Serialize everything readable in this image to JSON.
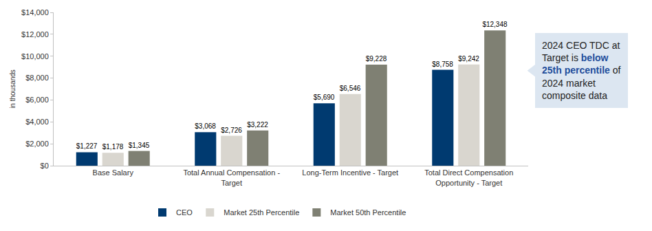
{
  "chart_data": {
    "type": "bar",
    "y_label": "in thousands",
    "categories": [
      "Base Salary",
      "Total Annual Compensation - Target",
      "Long-Term Incentive - Target",
      "Total Direct Compensation Opportunity - Target"
    ],
    "series": [
      {
        "name": "CEO",
        "color": "#003a70",
        "values": [
          1227,
          3068,
          5690,
          8758
        ],
        "value_labels": [
          "$1,227",
          "$3,068",
          "$5,690",
          "$8,758"
        ]
      },
      {
        "name": "Market 25th Percentile",
        "color": "#d9d6cf",
        "values": [
          1178,
          2726,
          6546,
          9242
        ],
        "value_labels": [
          "$1,178",
          "$2,726",
          "$6,546",
          "$9,242"
        ]
      },
      {
        "name": "Market 50th Percentile",
        "color": "#7f8073",
        "values": [
          1345,
          3222,
          9228,
          12348
        ],
        "value_labels": [
          "$1,345",
          "$3,222",
          "$9,228",
          "$12,348"
        ]
      }
    ],
    "ylim": [
      0,
      14000
    ],
    "yticks": [
      {
        "value": 0,
        "label": "$0"
      },
      {
        "value": 2000,
        "label": "$2,000"
      },
      {
        "value": 4000,
        "label": "$4,000"
      },
      {
        "value": 6000,
        "label": "$6,000"
      },
      {
        "value": 8000,
        "label": "$8,000"
      },
      {
        "value": 10000,
        "label": "$10,000"
      },
      {
        "value": 12000,
        "label": "$12,000"
      },
      {
        "value": 14000,
        "label": "$14,000"
      }
    ],
    "grid": false,
    "legend": "bottom",
    "data_labels": true,
    "annotations": [
      {
        "text": "2024 CEO TDC at Target is below 25th percentile of 2024 market composite data",
        "emphasis": "below 25th percentile"
      }
    ]
  }
}
